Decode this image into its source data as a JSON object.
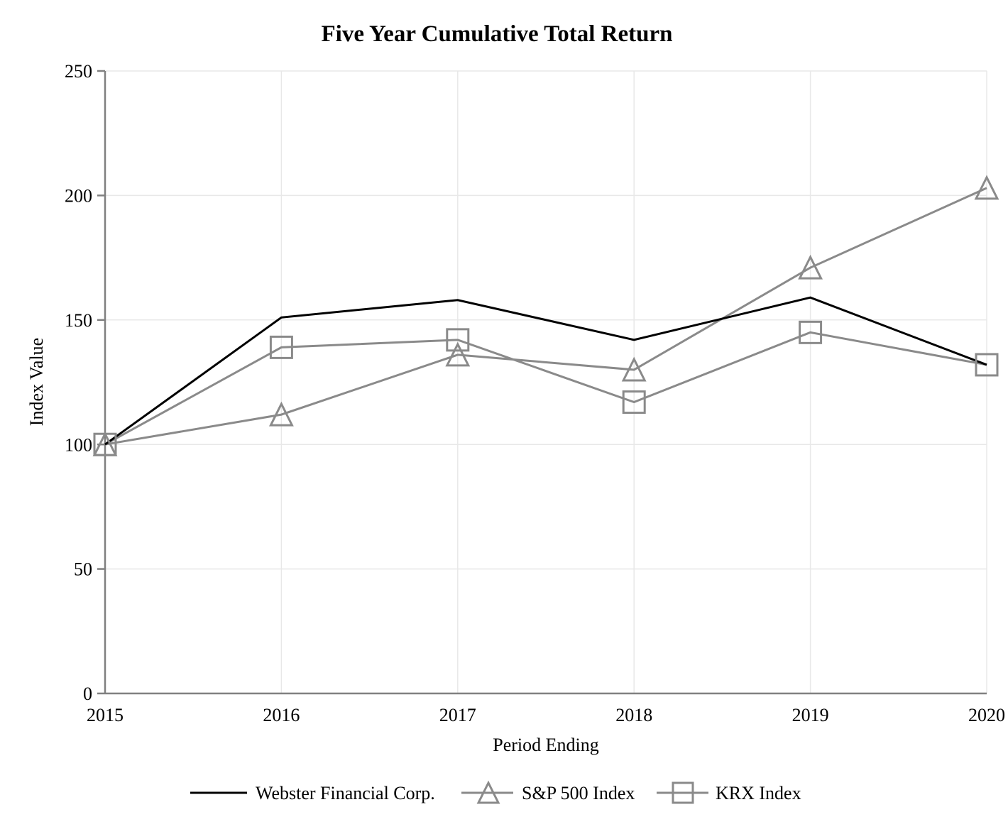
{
  "chart_data": {
    "type": "line",
    "title": "Five Year Cumulative Total Return",
    "xlabel": "Period Ending",
    "ylabel": "Index Value",
    "categories": [
      "2015",
      "2016",
      "2017",
      "2018",
      "2019",
      "2020"
    ],
    "ylim": [
      0,
      250
    ],
    "y_ticks": [
      0,
      50,
      100,
      150,
      200,
      250
    ],
    "grid": true,
    "legend_position": "bottom",
    "series": [
      {
        "name": "Webster Financial Corp.",
        "marker": "none",
        "color": "#000000",
        "values": [
          100,
          151,
          158,
          142,
          159,
          132
        ]
      },
      {
        "name": "S&P 500 Index",
        "marker": "triangle",
        "color": "#8a8a8a",
        "values": [
          100,
          112,
          136,
          130,
          171,
          203
        ]
      },
      {
        "name": "KRX Index",
        "marker": "square",
        "color": "#8a8a8a",
        "values": [
          100,
          139,
          142,
          117,
          145,
          132
        ]
      }
    ],
    "colors": {
      "axis": "#808080",
      "gridline": "#e8e8e8",
      "text": "#000000"
    }
  }
}
